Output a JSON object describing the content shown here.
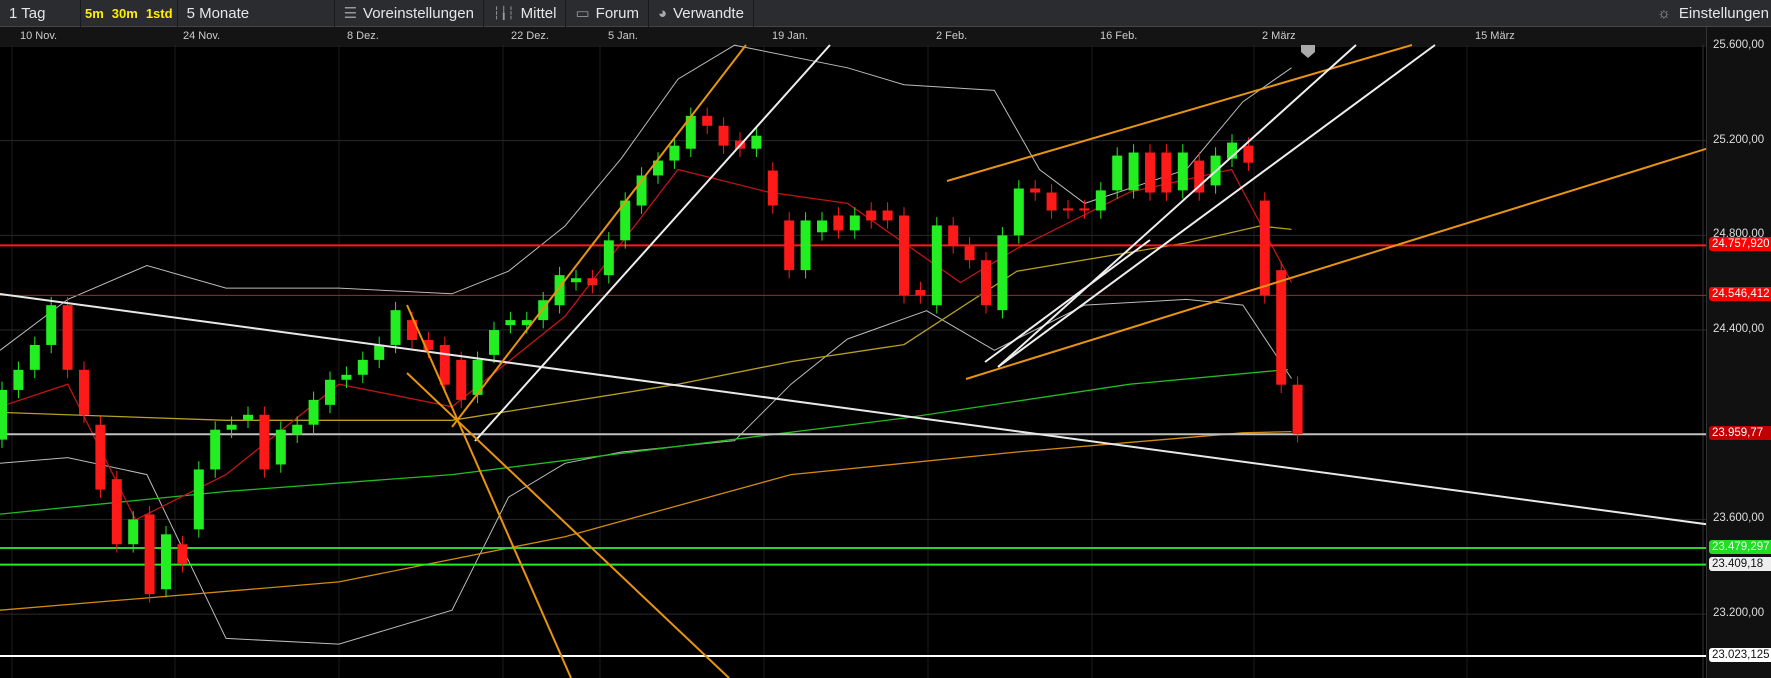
{
  "toolbar": {
    "period": "1 Tag",
    "intervals": [
      "5m",
      "30m",
      "1std"
    ],
    "range": "5 Monate",
    "presets": "Voreinstellungen",
    "indicators": "Mittel",
    "forum": "Forum",
    "related": "Verwandte",
    "settings": "Einstellungen"
  },
  "icons": {
    "presets": "sliders-icon",
    "indicators": "candlestick-icon",
    "forum": "speech-bubble-icon",
    "related": "related-icon",
    "settings": "gear-icon"
  },
  "chart_data": {
    "type": "candlestick",
    "x_ticks": [
      "10 Nov.",
      "24 Nov.",
      "8 Dez.",
      "22 Dez.",
      "5 Jan.",
      "19 Jan.",
      "2 Feb.",
      "16 Feb.",
      "2 März",
      "15 März"
    ],
    "y_ticks": [
      "25.600,00",
      "25.200,00",
      "24.800,00",
      "24.400,00",
      "23.600,00",
      "23.200,00"
    ],
    "ylim": [
      22800,
      25600
    ],
    "candles_open_close": [
      [
        23937,
        24147
      ],
      [
        24147,
        24232
      ],
      [
        24232,
        24337
      ],
      [
        24337,
        24505
      ],
      [
        24505,
        24232
      ],
      [
        24232,
        24042
      ],
      [
        24000,
        23726
      ],
      [
        23770,
        23495
      ],
      [
        23495,
        23600
      ],
      [
        23621,
        23284
      ],
      [
        23305,
        23537
      ],
      [
        23495,
        23411
      ],
      [
        23558,
        23811
      ],
      [
        23811,
        23979
      ],
      [
        23979,
        24000
      ],
      [
        24021,
        24042
      ],
      [
        24042,
        23811
      ],
      [
        23832,
        23979
      ],
      [
        23958,
        24000
      ],
      [
        24000,
        24105
      ],
      [
        24084,
        24190
      ],
      [
        24190,
        24211
      ],
      [
        24211,
        24274
      ],
      [
        24274,
        24337
      ],
      [
        24337,
        24484
      ],
      [
        24442,
        24358
      ],
      [
        24358,
        24316
      ],
      [
        24337,
        24169
      ],
      [
        24274,
        24105
      ],
      [
        24126,
        24274
      ],
      [
        24295,
        24400
      ],
      [
        24421,
        24442
      ],
      [
        24421,
        24442
      ],
      [
        24442,
        24526
      ],
      [
        24505,
        24632
      ],
      [
        24602,
        24619
      ],
      [
        24619,
        24590
      ],
      [
        24632,
        24779
      ],
      [
        24779,
        24947
      ],
      [
        24926,
        25053
      ],
      [
        25053,
        25116
      ],
      [
        25116,
        25179
      ],
      [
        25166,
        25305
      ],
      [
        25305,
        25263
      ],
      [
        25263,
        25179
      ],
      [
        25200,
        25166
      ],
      [
        25166,
        25221
      ],
      [
        25074,
        24926
      ],
      [
        24863,
        24653
      ],
      [
        24653,
        24863
      ],
      [
        24813,
        24863
      ],
      [
        24884,
        24821
      ],
      [
        24821,
        24884
      ],
      [
        24905,
        24863
      ],
      [
        24905,
        24863
      ],
      [
        24884,
        24547
      ],
      [
        24569,
        24547
      ],
      [
        24505,
        24842
      ],
      [
        24842,
        24758
      ],
      [
        24758,
        24695
      ],
      [
        24695,
        24505
      ],
      [
        24484,
        24800
      ],
      [
        24800,
        24998
      ],
      [
        24998,
        24981
      ],
      [
        24981,
        24905
      ],
      [
        24914,
        24905
      ],
      [
        24914,
        24905
      ],
      [
        24905,
        24990
      ],
      [
        24990,
        25137
      ],
      [
        24990,
        25150
      ],
      [
        25150,
        24981
      ],
      [
        25150,
        24981
      ],
      [
        24990,
        25150
      ],
      [
        25116,
        24981
      ],
      [
        25011,
        25137
      ],
      [
        25124,
        25192
      ],
      [
        25179,
        25107
      ],
      [
        24947,
        24547
      ],
      [
        24653,
        24169
      ],
      [
        24169,
        23960
      ]
    ],
    "levels": [
      {
        "label": "24.757,920",
        "value": 24757.92,
        "color": "#ff1a1a"
      },
      {
        "label": "24.546,412",
        "value": 24546.41,
        "color": "#e01010"
      },
      {
        "label": "23.959,77",
        "value": 23959.77,
        "color": "#c0c0c0",
        "tag": "#c00000"
      },
      {
        "label": "23.479,297",
        "value": 23479.3,
        "color": "#2fd02f",
        "tag": "#22dd22"
      },
      {
        "label": "23.409,18",
        "value": 23409.18,
        "color": "#22ee22",
        "tag": "#eeeeee"
      },
      {
        "label": "23.023,125",
        "value": 23023.13,
        "color": "#ffffff",
        "tag": "#ffffff"
      }
    ],
    "up_color": "#22ee22",
    "down_color": "#ff1a1a",
    "grid": true
  }
}
